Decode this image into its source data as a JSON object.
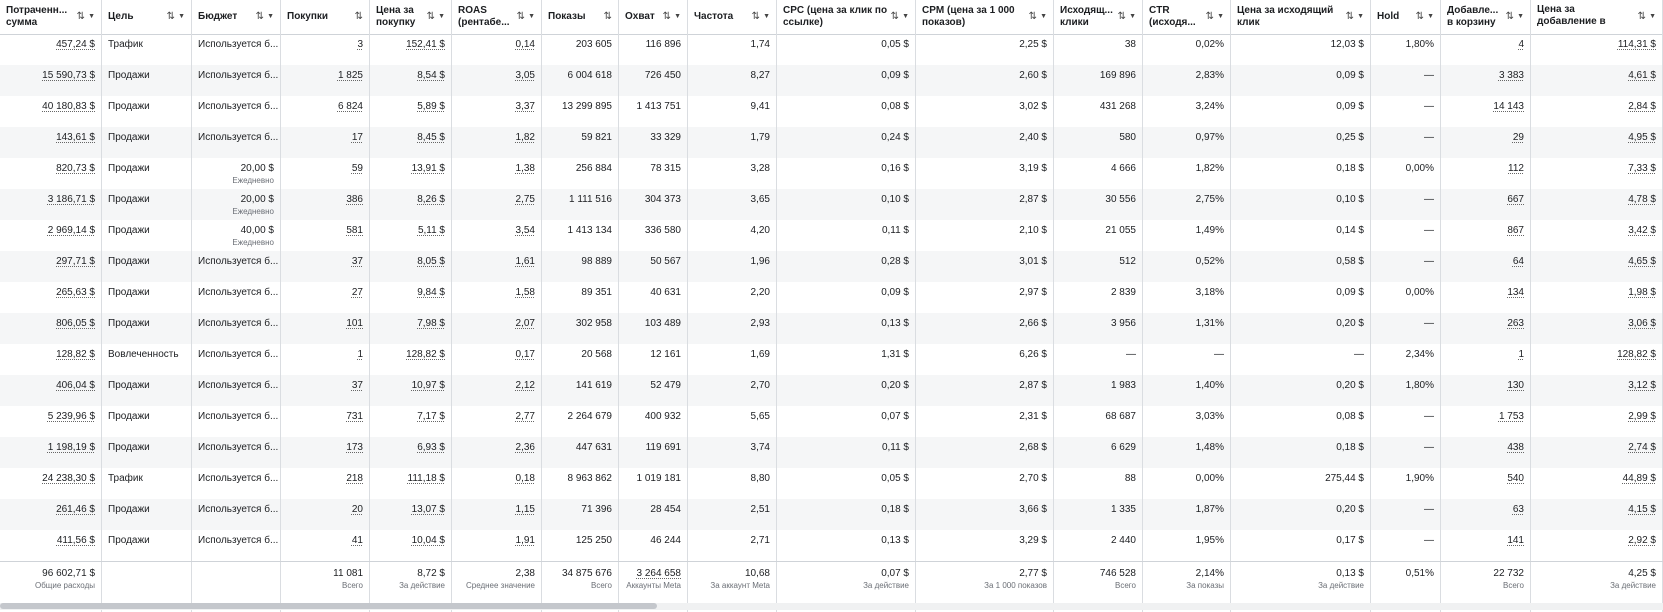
{
  "columns": [
    {
      "key": "spent",
      "label": "Потраченн... сумма",
      "sortable": true,
      "dropdown": true,
      "align": "right",
      "width": 102
    },
    {
      "key": "goal",
      "label": "Цель",
      "sortable": true,
      "dropdown": true,
      "align": "left",
      "width": 90
    },
    {
      "key": "budget",
      "label": "Бюджет",
      "sortable": true,
      "dropdown": true,
      "align": "left",
      "width": 89
    },
    {
      "key": "purchases",
      "label": "Покупки",
      "sortable": true,
      "dropdown": false,
      "align": "right",
      "width": 89
    },
    {
      "key": "cpp",
      "label": "Цена за покупку",
      "sortable": true,
      "dropdown": true,
      "align": "right",
      "width": 82
    },
    {
      "key": "roas",
      "label": "ROAS (рентабе...",
      "sortable": true,
      "dropdown": true,
      "align": "right",
      "width": 90
    },
    {
      "key": "impressions",
      "label": "Показы",
      "sortable": true,
      "dropdown": false,
      "align": "right",
      "width": 77
    },
    {
      "key": "reach",
      "label": "Охват",
      "sortable": true,
      "dropdown": true,
      "align": "right",
      "width": 69
    },
    {
      "key": "frequency",
      "label": "Частота",
      "sortable": true,
      "dropdown": true,
      "align": "right",
      "width": 89
    },
    {
      "key": "cpc",
      "label": "CPC (цена за клик по ссылке)",
      "sortable": true,
      "dropdown": true,
      "align": "right",
      "width": 139
    },
    {
      "key": "cpm",
      "label": "CPM (цена за 1 000 показов)",
      "sortable": true,
      "dropdown": true,
      "align": "right",
      "width": 138
    },
    {
      "key": "outbound",
      "label": "Исходящ... клики",
      "sortable": true,
      "dropdown": true,
      "align": "right",
      "width": 89
    },
    {
      "key": "ctr",
      "label": "CTR (исходя...",
      "sortable": true,
      "dropdown": true,
      "align": "right",
      "width": 88
    },
    {
      "key": "cost_outbound",
      "label": "Цена за исходящий клик",
      "sortable": true,
      "dropdown": true,
      "align": "right",
      "width": 140
    },
    {
      "key": "hold",
      "label": "Hold",
      "sortable": true,
      "dropdown": true,
      "align": "right",
      "width": 70
    },
    {
      "key": "atc",
      "label": "Добавле... в корзину",
      "sortable": true,
      "dropdown": true,
      "align": "right",
      "width": 90
    },
    {
      "key": "cost_atc",
      "label": "Цена за добавление в корзину",
      "sortable": true,
      "dropdown": true,
      "align": "right",
      "width": 132
    }
  ],
  "rows": [
    [
      "457,24 $",
      "Трафик",
      "Используется б...",
      "3",
      "152,41 $",
      "0,14",
      "203 605",
      "116 896",
      "1,74",
      "0,05 $",
      "2,25 $",
      "38",
      "0,02%",
      "12,03 $",
      "1,80%",
      "4",
      "114,31 $"
    ],
    [
      "15 590,73 $",
      "Продажи",
      "Используется б...",
      "1 825",
      "8,54 $",
      "3,05",
      "6 004 618",
      "726 450",
      "8,27",
      "0,09 $",
      "2,60 $",
      "169 896",
      "2,83%",
      "0,09 $",
      "—",
      "3 383",
      "4,61 $"
    ],
    [
      "40 180,83 $",
      "Продажи",
      "Используется б...",
      "6 824",
      "5,89 $",
      "3,37",
      "13 299 895",
      "1 413 751",
      "9,41",
      "0,08 $",
      "3,02 $",
      "431 268",
      "3,24%",
      "0,09 $",
      "—",
      "14 143",
      "2,84 $"
    ],
    [
      "143,61 $",
      "Продажи",
      "Используется б...",
      "17",
      "8,45 $",
      "1,82",
      "59 821",
      "33 329",
      "1,79",
      "0,24 $",
      "2,40 $",
      "580",
      "0,97%",
      "0,25 $",
      "—",
      "29",
      "4,95 $"
    ],
    [
      "820,73 $",
      "Продажи",
      "20,00 $|Ежедневно",
      "59",
      "13,91 $",
      "1,38",
      "256 884",
      "78 315",
      "3,28",
      "0,16 $",
      "3,19 $",
      "4 666",
      "1,82%",
      "0,18 $",
      "0,00%",
      "112",
      "7,33 $"
    ],
    [
      "3 186,71 $",
      "Продажи",
      "20,00 $|Ежедневно",
      "386",
      "8,26 $",
      "2,75",
      "1 111 516",
      "304 373",
      "3,65",
      "0,10 $",
      "2,87 $",
      "30 556",
      "2,75%",
      "0,10 $",
      "—",
      "667",
      "4,78 $"
    ],
    [
      "2 969,14 $",
      "Продажи",
      "40,00 $|Ежедневно",
      "581",
      "5,11 $",
      "3,54",
      "1 413 134",
      "336 580",
      "4,20",
      "0,11 $",
      "2,10 $",
      "21 055",
      "1,49%",
      "0,14 $",
      "—",
      "867",
      "3,42 $"
    ],
    [
      "297,71 $",
      "Продажи",
      "Используется б...",
      "37",
      "8,05 $",
      "1,61",
      "98 889",
      "50 567",
      "1,96",
      "0,28 $",
      "3,01 $",
      "512",
      "0,52%",
      "0,58 $",
      "—",
      "64",
      "4,65 $"
    ],
    [
      "265,63 $",
      "Продажи",
      "Используется б...",
      "27",
      "9,84 $",
      "1,58",
      "89 351",
      "40 631",
      "2,20",
      "0,09 $",
      "2,97 $",
      "2 839",
      "3,18%",
      "0,09 $",
      "0,00%",
      "134",
      "1,98 $"
    ],
    [
      "806,05 $",
      "Продажи",
      "Используется б...",
      "101",
      "7,98 $",
      "2,07",
      "302 958",
      "103 489",
      "2,93",
      "0,13 $",
      "2,66 $",
      "3 956",
      "1,31%",
      "0,20 $",
      "—",
      "263",
      "3,06 $"
    ],
    [
      "128,82 $",
      "Вовлеченность",
      "Используется б...",
      "1",
      "128,82 $",
      "0,17",
      "20 568",
      "12 161",
      "1,69",
      "1,31 $",
      "6,26 $",
      "—",
      "—",
      "—",
      "2,34%",
      "1",
      "128,82 $"
    ],
    [
      "406,04 $",
      "Продажи",
      "Используется б...",
      "37",
      "10,97 $",
      "2,12",
      "141 619",
      "52 479",
      "2,70",
      "0,20 $",
      "2,87 $",
      "1 983",
      "1,40%",
      "0,20 $",
      "1,80%",
      "130",
      "3,12 $"
    ],
    [
      "5 239,96 $",
      "Продажи",
      "Используется б...",
      "731",
      "7,17 $",
      "2,77",
      "2 264 679",
      "400 932",
      "5,65",
      "0,07 $",
      "2,31 $",
      "68 687",
      "3,03%",
      "0,08 $",
      "—",
      "1 753",
      "2,99 $"
    ],
    [
      "1 198,19 $",
      "Продажи",
      "Используется б...",
      "173",
      "6,93 $",
      "2,36",
      "447 631",
      "119 691",
      "3,74",
      "0,11 $",
      "2,68 $",
      "6 629",
      "1,48%",
      "0,18 $",
      "—",
      "438",
      "2,74 $"
    ],
    [
      "24 238,30 $",
      "Трафик",
      "Используется б...",
      "218",
      "111,18 $",
      "0,18",
      "8 963 862",
      "1 019 181",
      "8,80",
      "0,05 $",
      "2,70 $",
      "88",
      "0,00%",
      "275,44 $",
      "1,90%",
      "540",
      "44,89 $"
    ],
    [
      "261,46 $",
      "Продажи",
      "Используется б...",
      "20",
      "13,07 $",
      "1,15",
      "71 396",
      "28 454",
      "2,51",
      "0,18 $",
      "3,66 $",
      "1 335",
      "1,87%",
      "0,20 $",
      "—",
      "63",
      "4,15 $"
    ],
    [
      "411,56 $",
      "Продажи",
      "Используется б...",
      "41",
      "10,04 $",
      "1,91",
      "125 250",
      "46 244",
      "2,71",
      "0,13 $",
      "3,29 $",
      "2 440",
      "1,95%",
      "0,17 $",
      "—",
      "141",
      "2,92 $"
    ]
  ],
  "footer": [
    {
      "value": "96 602,71 $",
      "caption": "Общие расходы"
    },
    {
      "value": "",
      "caption": ""
    },
    {
      "value": "",
      "caption": ""
    },
    {
      "value": "11 081",
      "caption": "Всего"
    },
    {
      "value": "8,72 $",
      "caption": "За действие"
    },
    {
      "value": "2,38",
      "caption": "Среднее значение"
    },
    {
      "value": "34 875 676",
      "caption": "Всего"
    },
    {
      "value": "3 264 658",
      "caption": "Аккаунты Meta"
    },
    {
      "value": "10,68",
      "caption": "За аккаунт Meta"
    },
    {
      "value": "0,07 $",
      "caption": "За действие"
    },
    {
      "value": "2,77 $",
      "caption": "За 1 000 показов"
    },
    {
      "value": "746 528",
      "caption": "Всего"
    },
    {
      "value": "2,14%",
      "caption": "За показы"
    },
    {
      "value": "0,13 $",
      "caption": "За действие"
    },
    {
      "value": "0,51%",
      "caption": ""
    },
    {
      "value": "22 732",
      "caption": "Всего"
    },
    {
      "value": "4,25 $",
      "caption": "За действие"
    }
  ],
  "icons": {
    "sort": "sort-arrows-icon",
    "dropdown": "caret-down-icon"
  },
  "colors": {
    "border": "#dadde1",
    "alt_row": "#f5f6f7",
    "muted": "#6b6f76"
  }
}
